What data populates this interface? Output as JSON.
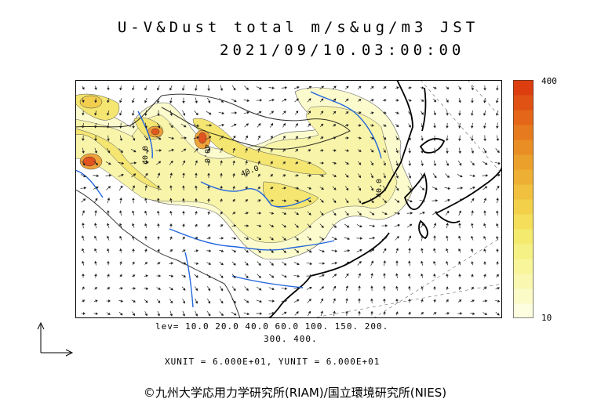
{
  "title": {
    "line1": "U-V&Dust total m/s&ug/m3 JST",
    "line2": "2021/09/10.03:00:00"
  },
  "colorbar": {
    "max_label": "400",
    "min_label": "10",
    "colors": [
      "#fdfde0",
      "#fbfbc8",
      "#f9f7b0",
      "#f8f59a",
      "#f6f184",
      "#f4ea6e",
      "#f4de5a",
      "#f2d04a",
      "#f0c03e",
      "#eeb034",
      "#eba02c",
      "#e88e24",
      "#e67a1e",
      "#e46618",
      "#e05214",
      "#dc3e10"
    ]
  },
  "levels": {
    "line1": "lev= 10.0 20.0 40.0 60.0 100. 150. 200.",
    "line2": "300. 400."
  },
  "contour_labels": [
    "40.0",
    "40.0",
    "40.0",
    "40.0"
  ],
  "units": "XUNIT = 6.000E+01, YUNIT = 6.000E+01",
  "credit": "©九州大学応用力学研究所(RIAM)/国立環境研究所(NIES)",
  "map_colors": {
    "frame": "#000000",
    "rivers": "#2266dd",
    "coast": "#000000",
    "wind": "#222222"
  }
}
